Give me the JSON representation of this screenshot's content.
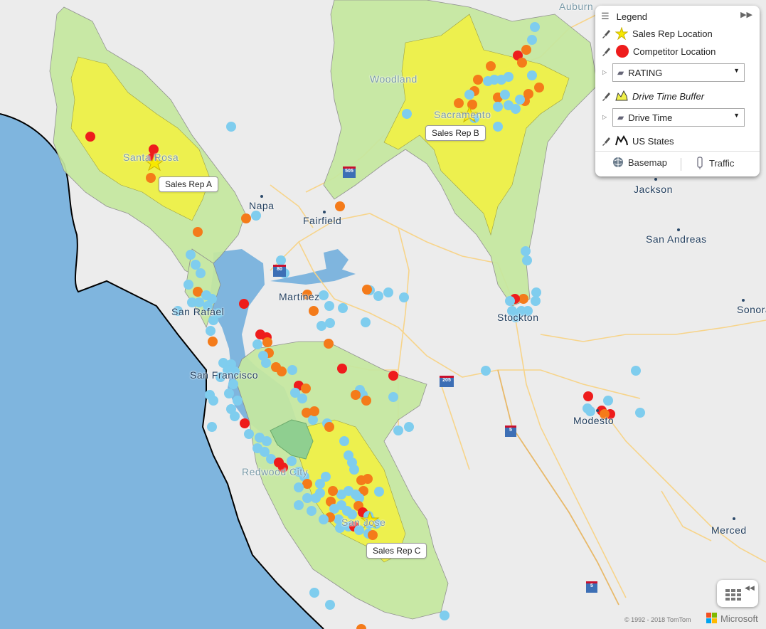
{
  "map": {
    "cities": [
      {
        "name": "Auburn",
        "style": "faint"
      },
      {
        "name": "Woodland",
        "style": "faint"
      },
      {
        "name": "Sacramento",
        "style": "faint"
      },
      {
        "name": "Santa Rosa",
        "style": "faint"
      },
      {
        "name": "Napa",
        "style": "dark"
      },
      {
        "name": "Fairfield",
        "style": "dark"
      },
      {
        "name": "Jackson",
        "style": "dark"
      },
      {
        "name": "San Andreas",
        "style": "dark"
      },
      {
        "name": "Martinez",
        "style": "dark"
      },
      {
        "name": "San Rafael",
        "style": "dark"
      },
      {
        "name": "Stockton",
        "style": "dark"
      },
      {
        "name": "Sonora",
        "style": "dark"
      },
      {
        "name": "San Francisco",
        "style": "dark"
      },
      {
        "name": "Modesto",
        "style": "dark"
      },
      {
        "name": "Redwood City",
        "style": "faint"
      },
      {
        "name": "San Jose",
        "style": "faint"
      },
      {
        "name": "Merced",
        "style": "dark"
      }
    ],
    "sales_rep_labels": [
      "Sales Rep A",
      "Sales Rep B",
      "Sales Rep C"
    ],
    "highway_shields": [
      "80",
      "505",
      "80",
      "205",
      "5",
      "5",
      "101",
      "101"
    ],
    "colors": {
      "water": "#7fb5de",
      "land": "#ececec",
      "drive_time_outer": "#c6e8a0",
      "drive_time_inner": "#f0f14a",
      "competitor_red": "#ee1c1c",
      "competitor_orange": "#f47b1a",
      "competitor_blue": "#7fcdee",
      "star": "#f7e800"
    }
  },
  "legend": {
    "title": "Legend",
    "collapse_icon": "double-chevron-right-icon",
    "layers": [
      {
        "label": "Sales Rep Location",
        "icon": "star-icon"
      },
      {
        "label": "Competitor Location",
        "icon": "red-circle-icon"
      },
      {
        "label": "RATING",
        "type": "dropdown"
      },
      {
        "label": "Drive Time Buffer",
        "icon": "buffer-icon"
      },
      {
        "label": "Drive Time",
        "type": "dropdown"
      },
      {
        "label": "US States",
        "icon": "states-icon"
      }
    ],
    "footer": {
      "basemap": "Basemap",
      "traffic": "Traffic"
    }
  },
  "attribution": {
    "copyright": "© 1992 - 2018 TomTom",
    "brand": "Microsoft"
  }
}
